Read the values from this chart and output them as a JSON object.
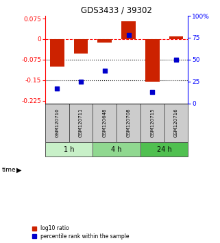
{
  "title": "GDS3433 / 39302",
  "samples": [
    "GSM120710",
    "GSM120711",
    "GSM120648",
    "GSM120708",
    "GSM120715",
    "GSM120716"
  ],
  "log10_ratio": [
    -0.1,
    -0.053,
    -0.013,
    0.065,
    -0.155,
    0.01
  ],
  "percentile_rank": [
    17,
    25,
    37,
    78,
    13,
    50
  ],
  "time_groups": [
    {
      "label": "1 h",
      "start": 0,
      "end": 2,
      "color": "#c8f0c8"
    },
    {
      "label": "4 h",
      "start": 2,
      "end": 4,
      "color": "#90d890"
    },
    {
      "label": "24 h",
      "start": 4,
      "end": 6,
      "color": "#50c050"
    }
  ],
  "bar_color": "#cc2200",
  "square_color": "#0000cc",
  "ylim_left": [
    -0.235,
    0.085
  ],
  "ylim_right": [
    0,
    100
  ],
  "yticks_left": [
    0.075,
    0,
    -0.075,
    -0.15,
    -0.225
  ],
  "yticks_right": [
    100,
    75,
    50,
    25,
    0
  ],
  "hlines": [
    0,
    -0.075,
    -0.15
  ],
  "hline_styles": [
    "--",
    ":",
    ":"
  ],
  "hline_colors": [
    "red",
    "black",
    "black"
  ],
  "bar_width": 0.6,
  "square_size": 25,
  "legend_labels": [
    "log10 ratio",
    "percentile rank within the sample"
  ],
  "sample_bg_color": "#cccccc",
  "sample_border_color": "#555555"
}
